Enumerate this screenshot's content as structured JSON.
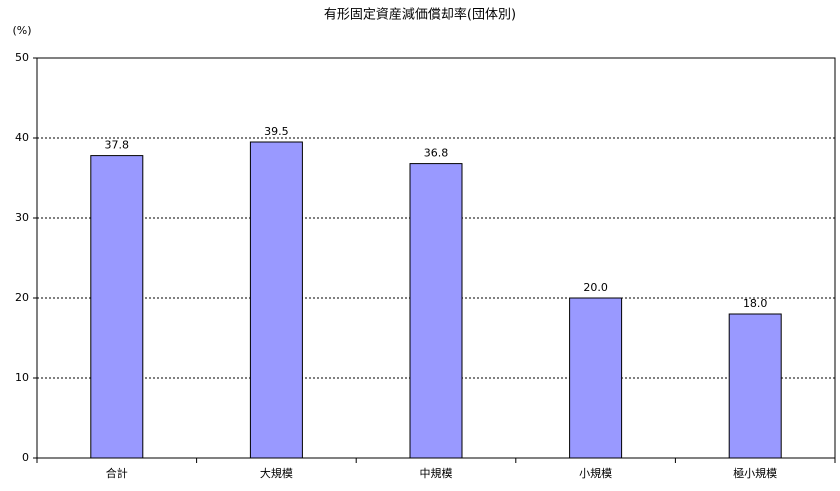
{
  "chart_data": {
    "type": "bar",
    "title": "有形固定資産減価償却率(団体別)",
    "y_label": "(%)",
    "categories": [
      "合計",
      "大規模",
      "中規模",
      "小規模",
      "極小規模"
    ],
    "values": [
      37.8,
      39.5,
      36.8,
      20.0,
      18.0
    ],
    "value_labels": [
      "37.8",
      "39.5",
      "36.8",
      "20.0",
      "18.0"
    ],
    "color": "#9999ff",
    "ylim": [
      0,
      50
    ],
    "yticks": [
      0,
      10,
      20,
      30,
      40,
      50
    ],
    "grid": true
  }
}
